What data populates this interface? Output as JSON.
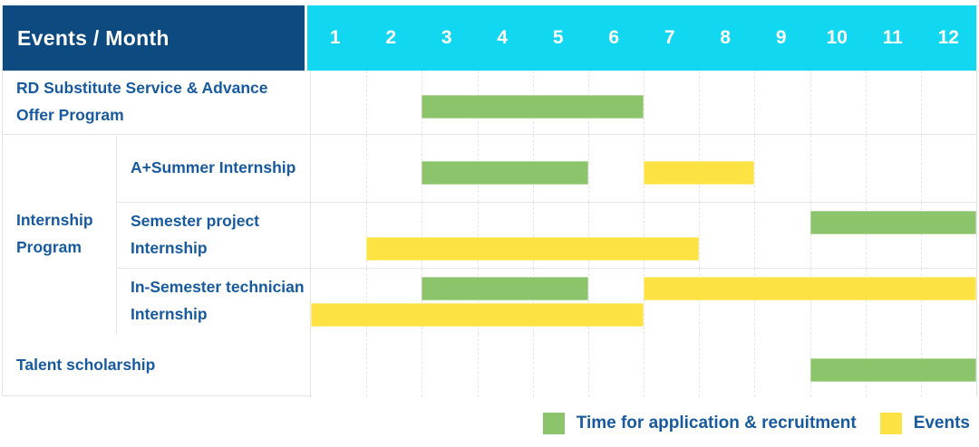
{
  "header": {
    "events_month_label": "Events / Month"
  },
  "colors": {
    "header_bg": "#0d4a80",
    "months_bg": "#12d7f0",
    "green": "#8bc46a",
    "yellow": "#fde243",
    "label_text": "#175a9d",
    "grid_line": "#e4e4e4"
  },
  "chart_data": {
    "type": "gantt",
    "title": "Events / Month",
    "x_axis_label": "Month",
    "months": [
      "1",
      "2",
      "3",
      "4",
      "5",
      "6",
      "7",
      "8",
      "9",
      "10",
      "11",
      "12"
    ],
    "x_range": [
      1,
      12
    ],
    "grid": "dashed-vertical",
    "internship_group_label": "Internship Program",
    "rows": [
      {
        "label": "RD Substitute Service & Advance Offer Program",
        "group": null,
        "tracks": [
          [
            {
              "color": "green",
              "start": 3,
              "end": 6
            }
          ]
        ]
      },
      {
        "label": "A+Summer Internship",
        "group": "Internship Program",
        "tracks": [
          [
            {
              "color": "green",
              "start": 3,
              "end": 5
            },
            {
              "color": "yellow",
              "start": 7,
              "end": 8
            }
          ]
        ]
      },
      {
        "label": "Semester project Internship",
        "group": "Internship Program",
        "tracks": [
          [
            {
              "color": "green",
              "start": 10,
              "end": 12
            }
          ],
          [
            {
              "color": "yellow",
              "start": 2,
              "end": 7
            }
          ]
        ]
      },
      {
        "label": "In-Semester technician Internship",
        "group": "Internship Program",
        "tracks": [
          [
            {
              "color": "green",
              "start": 3,
              "end": 5
            },
            {
              "color": "yellow",
              "start": 7,
              "end": 12
            }
          ],
          [
            {
              "color": "yellow",
              "start": 1,
              "end": 6
            }
          ]
        ]
      },
      {
        "label": "Talent scholarship",
        "group": null,
        "tracks": [
          [
            {
              "color": "green",
              "start": 10,
              "end": 12
            }
          ]
        ]
      }
    ],
    "legend": [
      {
        "color": "green",
        "label": "Time for application & recruitment"
      },
      {
        "color": "yellow",
        "label": "Events"
      }
    ],
    "legend_position": "bottom-right"
  }
}
